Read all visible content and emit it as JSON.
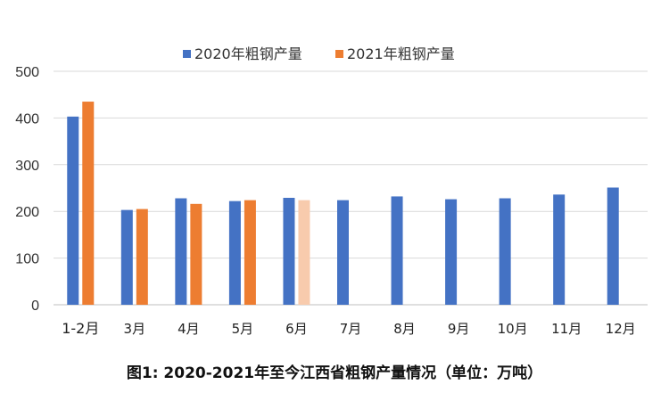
{
  "caption": "图1: 2020-2021年至今江西省粗钢产量情况（单位：万吨）",
  "chart_data": {
    "type": "bar",
    "title": "",
    "xlabel": "",
    "ylabel": "",
    "ylim": [
      0,
      500
    ],
    "yticks": [
      0,
      100,
      200,
      300,
      400,
      500
    ],
    "grid": true,
    "legend_position": "top",
    "categories": [
      "1-2月",
      "3月",
      "4月",
      "5月",
      "6月",
      "7月",
      "8月",
      "9月",
      "10月",
      "11月",
      "12月"
    ],
    "series": [
      {
        "name": "2020年粗钢产量",
        "color": "#4472C4",
        "values": [
          403,
          203,
          228,
          222,
          229,
          224,
          232,
          226,
          228,
          236,
          251
        ]
      },
      {
        "name": "2021年粗钢产量",
        "color": "#ED7D31",
        "values": [
          435,
          205,
          216,
          224,
          224,
          null,
          null,
          null,
          null,
          null,
          null
        ],
        "highlight": [
          {
            "index": 4,
            "color": "#F8CBAD"
          }
        ]
      }
    ]
  }
}
